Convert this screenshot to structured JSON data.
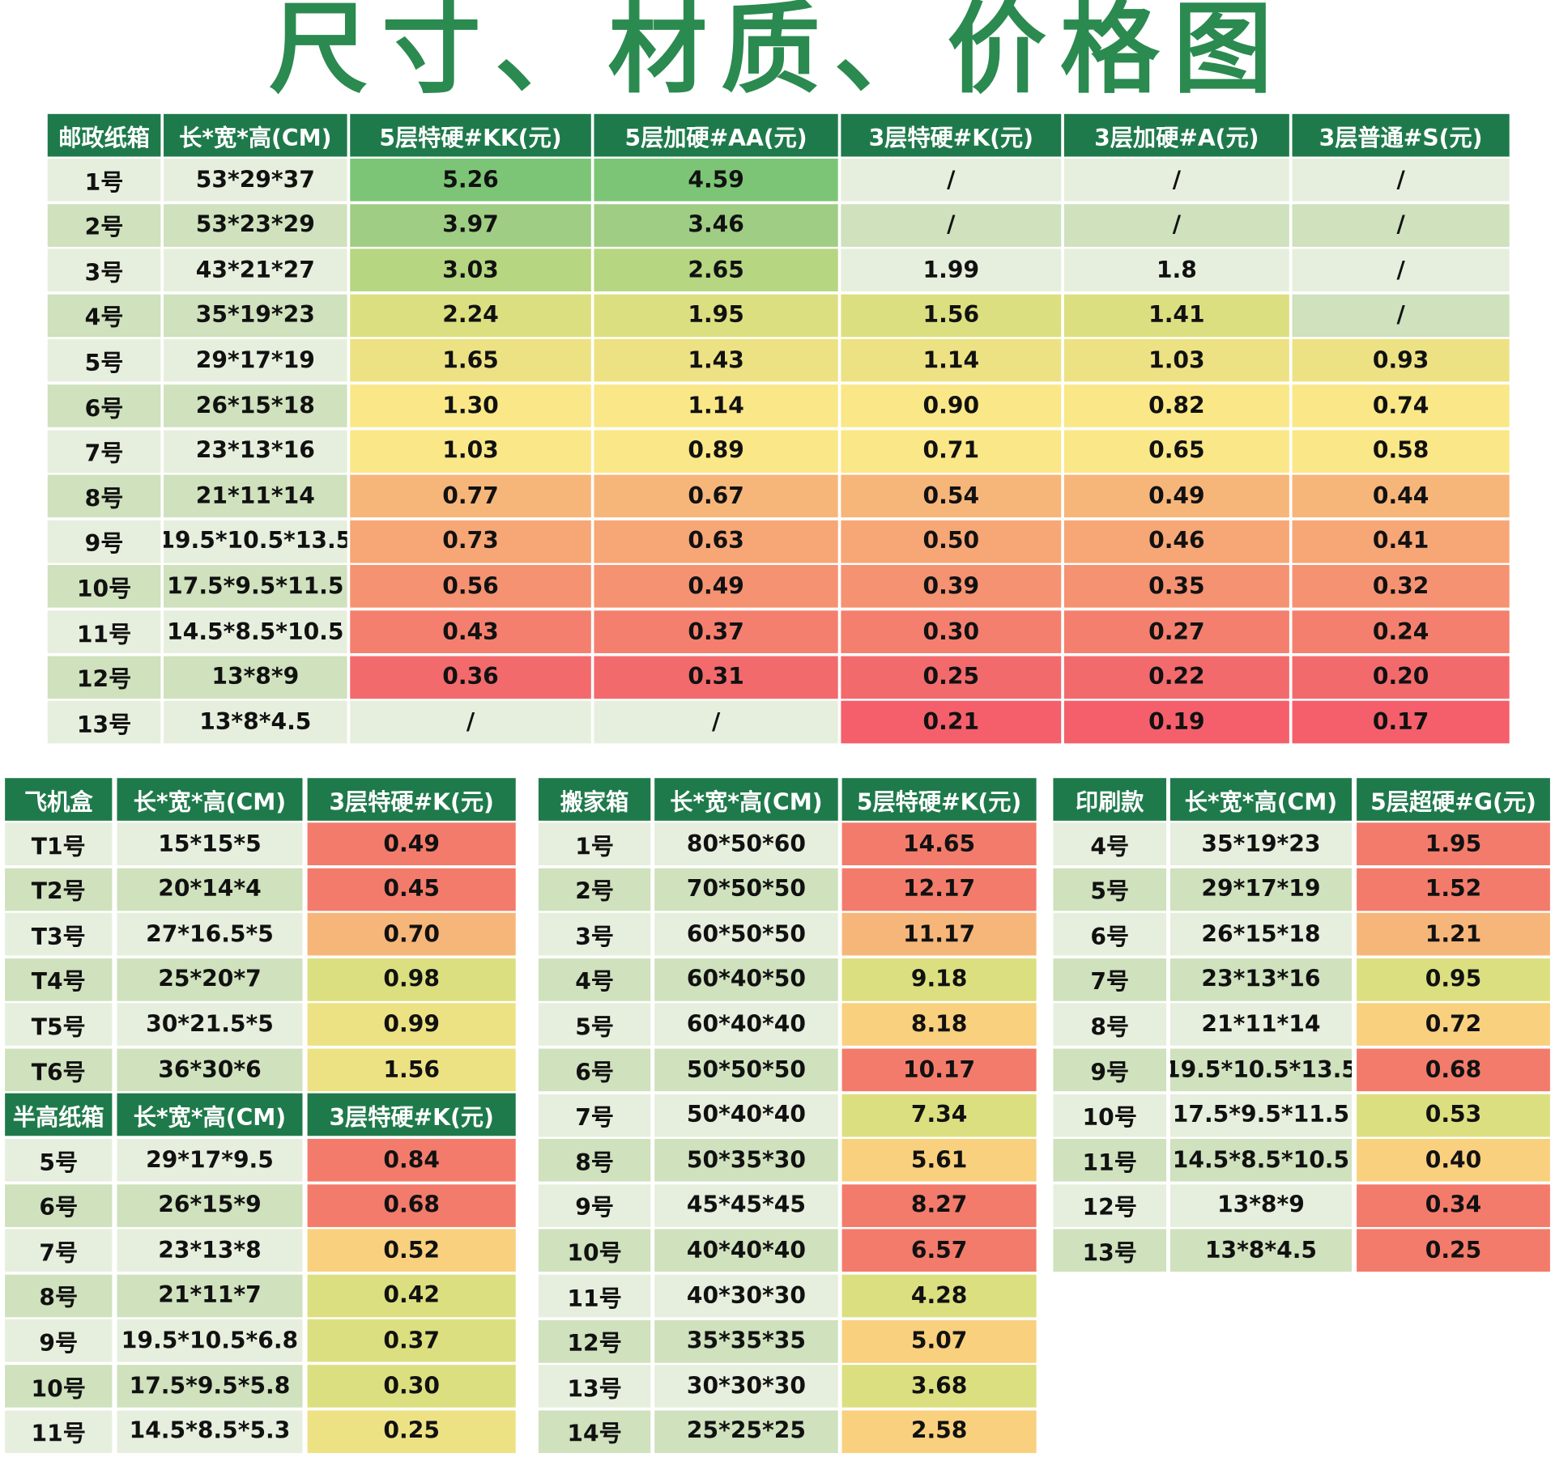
{
  "title": "尺寸、材质、价格图",
  "colors": {
    "header": "#1f7a4b",
    "rowLight": "#e6efdd",
    "rowDark": "#cfe1bd",
    "g1": "#7cc576",
    "g2": "#9fcd83",
    "g3": "#b6d681",
    "yg": "#dcdf7f",
    "y1": "#ece284",
    "y2": "#fae787",
    "yo": "#f9d07e",
    "o1": "#f7b679",
    "o2": "#f7a676",
    "s1": "#f59271",
    "s2": "#f47f6e",
    "r1": "#f36a6d",
    "r2": "#f45f6b",
    "red": "#f37b6b"
  },
  "tables": [
    {
      "id": "postal",
      "headers": [
        "邮政纸箱",
        "长*宽*高(CM)",
        "5层特硬#KK(元)",
        "5层加硬#AA(元)",
        "3层特硬#K(元)",
        "3层加硬#A(元)",
        "3层普通#S(元)"
      ],
      "rows": [
        {
          "cells": [
            "1号",
            "53*29*37",
            "5.26",
            "4.59",
            "/",
            "/",
            "/"
          ],
          "fills": [
            null,
            null,
            "g1",
            "g1",
            null,
            null,
            null
          ]
        },
        {
          "cells": [
            "2号",
            "53*23*29",
            "3.97",
            "3.46",
            "/",
            "/",
            "/"
          ],
          "fills": [
            null,
            null,
            "g2",
            "g2",
            null,
            null,
            null
          ]
        },
        {
          "cells": [
            "3号",
            "43*21*27",
            "3.03",
            "2.65",
            "1.99",
            "1.8",
            "/"
          ],
          "fills": [
            null,
            null,
            "g3",
            "g3",
            null,
            null,
            null
          ]
        },
        {
          "cells": [
            "4号",
            "35*19*23",
            "2.24",
            "1.95",
            "1.56",
            "1.41",
            "/"
          ],
          "fills": [
            null,
            null,
            "yg",
            "yg",
            "yg",
            "yg",
            null
          ]
        },
        {
          "cells": [
            "5号",
            "29*17*19",
            "1.65",
            "1.43",
            "1.14",
            "1.03",
            "0.93"
          ],
          "fills": [
            null,
            null,
            "y1",
            "y1",
            "y1",
            "y1",
            "y1"
          ]
        },
        {
          "cells": [
            "6号",
            "26*15*18",
            "1.30",
            "1.14",
            "0.90",
            "0.82",
            "0.74"
          ],
          "fills": [
            null,
            null,
            "y2",
            "y2",
            "y2",
            "y2",
            "y2"
          ]
        },
        {
          "cells": [
            "7号",
            "23*13*16",
            "1.03",
            "0.89",
            "0.71",
            "0.65",
            "0.58"
          ],
          "fills": [
            null,
            null,
            "y2",
            "y2",
            "y2",
            "y2",
            "y2"
          ]
        },
        {
          "cells": [
            "8号",
            "21*11*14",
            "0.77",
            "0.67",
            "0.54",
            "0.49",
            "0.44"
          ],
          "fills": [
            null,
            null,
            "o1",
            "o1",
            "o1",
            "o1",
            "o1"
          ]
        },
        {
          "cells": [
            "9号",
            "19.5*10.5*13.5",
            "0.73",
            "0.63",
            "0.50",
            "0.46",
            "0.41"
          ],
          "fills": [
            null,
            null,
            "o2",
            "o2",
            "o2",
            "o2",
            "o2"
          ]
        },
        {
          "cells": [
            "10号",
            "17.5*9.5*11.5",
            "0.56",
            "0.49",
            "0.39",
            "0.35",
            "0.32"
          ],
          "fills": [
            null,
            null,
            "s1",
            "s1",
            "s1",
            "s1",
            "s1"
          ]
        },
        {
          "cells": [
            "11号",
            "14.5*8.5*10.5",
            "0.43",
            "0.37",
            "0.30",
            "0.27",
            "0.24"
          ],
          "fills": [
            null,
            null,
            "s2",
            "s2",
            "s2",
            "s2",
            "s2"
          ]
        },
        {
          "cells": [
            "12号",
            "13*8*9",
            "0.36",
            "0.31",
            "0.25",
            "0.22",
            "0.20"
          ],
          "fills": [
            null,
            null,
            "r1",
            "r1",
            "r1",
            "r1",
            "r1"
          ]
        },
        {
          "cells": [
            "13号",
            "13*8*4.5",
            "/",
            "/",
            "0.21",
            "0.19",
            "0.17"
          ],
          "fills": [
            null,
            null,
            null,
            null,
            "r2",
            "r2",
            "r2"
          ]
        }
      ]
    },
    {
      "id": "airplane",
      "headers": [
        "飞机盒",
        "长*宽*高(CM)",
        "3层特硬#K(元)"
      ],
      "rows": [
        {
          "cells": [
            "T1号",
            "15*15*5",
            "0.49"
          ],
          "fills": [
            null,
            null,
            "red"
          ]
        },
        {
          "cells": [
            "T2号",
            "20*14*4",
            "0.45"
          ],
          "fills": [
            null,
            null,
            "red"
          ]
        },
        {
          "cells": [
            "T3号",
            "27*16.5*5",
            "0.70"
          ],
          "fills": [
            null,
            null,
            "o1"
          ]
        },
        {
          "cells": [
            "T4号",
            "25*20*7",
            "0.98"
          ],
          "fills": [
            null,
            null,
            "yg"
          ]
        },
        {
          "cells": [
            "T5号",
            "30*21.5*5",
            "0.99"
          ],
          "fills": [
            null,
            null,
            "y1"
          ]
        },
        {
          "cells": [
            "T6号",
            "36*30*6",
            "1.56"
          ],
          "fills": [
            null,
            null,
            "y1"
          ]
        }
      ]
    },
    {
      "id": "half-height",
      "headers": [
        "半高纸箱",
        "长*宽*高(CM)",
        "3层特硬#K(元)"
      ],
      "rows": [
        {
          "cells": [
            "5号",
            "29*17*9.5",
            "0.84"
          ],
          "fills": [
            null,
            null,
            "red"
          ]
        },
        {
          "cells": [
            "6号",
            "26*15*9",
            "0.68"
          ],
          "fills": [
            null,
            null,
            "red"
          ]
        },
        {
          "cells": [
            "7号",
            "23*13*8",
            "0.52"
          ],
          "fills": [
            null,
            null,
            "yo"
          ]
        },
        {
          "cells": [
            "8号",
            "21*11*7",
            "0.42"
          ],
          "fills": [
            null,
            null,
            "yg"
          ]
        },
        {
          "cells": [
            "9号",
            "19.5*10.5*6.8",
            "0.37"
          ],
          "fills": [
            null,
            null,
            "yg"
          ]
        },
        {
          "cells": [
            "10号",
            "17.5*9.5*5.8",
            "0.30"
          ],
          "fills": [
            null,
            null,
            "yg"
          ]
        },
        {
          "cells": [
            "11号",
            "14.5*8.5*5.3",
            "0.25"
          ],
          "fills": [
            null,
            null,
            "y1"
          ]
        }
      ]
    },
    {
      "id": "moving",
      "headers": [
        "搬家箱",
        "长*宽*高(CM)",
        "5层特硬#K(元)"
      ],
      "rows": [
        {
          "cells": [
            "1号",
            "80*50*60",
            "14.65"
          ],
          "fills": [
            null,
            null,
            "red"
          ]
        },
        {
          "cells": [
            "2号",
            "70*50*50",
            "12.17"
          ],
          "fills": [
            null,
            null,
            "red"
          ]
        },
        {
          "cells": [
            "3号",
            "60*50*50",
            "11.17"
          ],
          "fills": [
            null,
            null,
            "o1"
          ]
        },
        {
          "cells": [
            "4号",
            "60*40*50",
            "9.18"
          ],
          "fills": [
            null,
            null,
            "yg"
          ]
        },
        {
          "cells": [
            "5号",
            "60*40*40",
            "8.18"
          ],
          "fills": [
            null,
            null,
            "yo"
          ]
        },
        {
          "cells": [
            "6号",
            "50*50*50",
            "10.17"
          ],
          "fills": [
            null,
            null,
            "red"
          ]
        },
        {
          "cells": [
            "7号",
            "50*40*40",
            "7.34"
          ],
          "fills": [
            null,
            null,
            "yg"
          ]
        },
        {
          "cells": [
            "8号",
            "50*35*30",
            "5.61"
          ],
          "fills": [
            null,
            null,
            "yo"
          ]
        },
        {
          "cells": [
            "9号",
            "45*45*45",
            "8.27"
          ],
          "fills": [
            null,
            null,
            "red"
          ]
        },
        {
          "cells": [
            "10号",
            "40*40*40",
            "6.57"
          ],
          "fills": [
            null,
            null,
            "red"
          ]
        },
        {
          "cells": [
            "11号",
            "40*30*30",
            "4.28"
          ],
          "fills": [
            null,
            null,
            "yg"
          ]
        },
        {
          "cells": [
            "12号",
            "35*35*35",
            "5.07"
          ],
          "fills": [
            null,
            null,
            "yo"
          ]
        },
        {
          "cells": [
            "13号",
            "30*30*30",
            "3.68"
          ],
          "fills": [
            null,
            null,
            "yg"
          ]
        },
        {
          "cells": [
            "14号",
            "25*25*25",
            "2.58"
          ],
          "fills": [
            null,
            null,
            "yo"
          ]
        }
      ]
    },
    {
      "id": "printed",
      "headers": [
        "印刷款",
        "长*宽*高(CM)",
        "5层超硬#G(元)"
      ],
      "rows": [
        {
          "cells": [
            "4号",
            "35*19*23",
            "1.95"
          ],
          "fills": [
            null,
            null,
            "red"
          ]
        },
        {
          "cells": [
            "5号",
            "29*17*19",
            "1.52"
          ],
          "fills": [
            null,
            null,
            "red"
          ]
        },
        {
          "cells": [
            "6号",
            "26*15*18",
            "1.21"
          ],
          "fills": [
            null,
            null,
            "o1"
          ]
        },
        {
          "cells": [
            "7号",
            "23*13*16",
            "0.95"
          ],
          "fills": [
            null,
            null,
            "yg"
          ]
        },
        {
          "cells": [
            "8号",
            "21*11*14",
            "0.72"
          ],
          "fills": [
            null,
            null,
            "yo"
          ]
        },
        {
          "cells": [
            "9号",
            "19.5*10.5*13.5",
            "0.68"
          ],
          "fills": [
            null,
            null,
            "red"
          ]
        },
        {
          "cells": [
            "10号",
            "17.5*9.5*11.5",
            "0.53"
          ],
          "fills": [
            null,
            null,
            "yg"
          ]
        },
        {
          "cells": [
            "11号",
            "14.5*8.5*10.5",
            "0.40"
          ],
          "fills": [
            null,
            null,
            "yo"
          ]
        },
        {
          "cells": [
            "12号",
            "13*8*9",
            "0.34"
          ],
          "fills": [
            null,
            null,
            "red"
          ]
        },
        {
          "cells": [
            "13号",
            "13*8*4.5",
            "0.25"
          ],
          "fills": [
            null,
            null,
            "red"
          ]
        }
      ]
    }
  ]
}
